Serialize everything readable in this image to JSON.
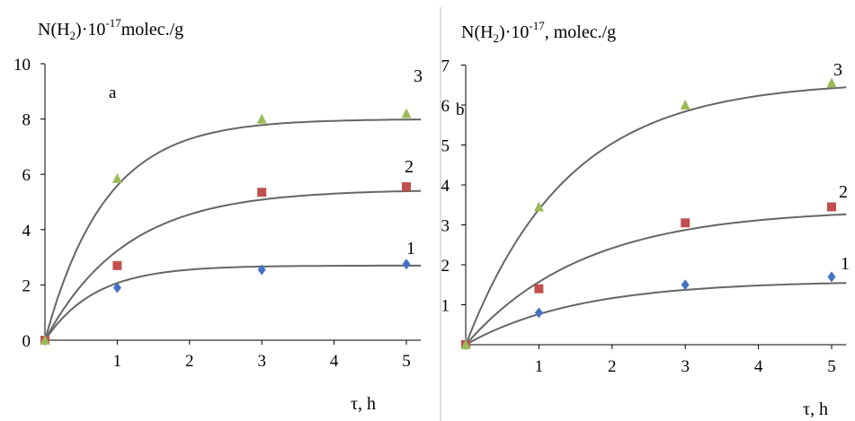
{
  "chart_data": [
    {
      "type": "scatter",
      "panel_label": "a",
      "ylabel_prefix": "N(H",
      "ylabel_sub": "2",
      "ylabel_mid": ")·10",
      "ylabel_exp": "-17",
      "ylabel_unit": "molec./g",
      "xlabel": "τ, h",
      "xlim": [
        0,
        5.2
      ],
      "ylim": [
        0,
        10
      ],
      "x_ticks": [
        1,
        2,
        3,
        4,
        5
      ],
      "y_ticks": [
        0,
        2,
        4,
        6,
        8,
        10
      ],
      "series": [
        {
          "label": "1",
          "color": "#4472c4",
          "marker": "diamond",
          "x": [
            0,
            1,
            3,
            5
          ],
          "y": [
            0,
            1.9,
            2.55,
            2.75
          ],
          "fit_plateau": 2.7,
          "fit_rate": 1.45
        },
        {
          "label": "2",
          "color": "#c0504d",
          "marker": "square",
          "x": [
            0,
            1,
            3,
            5
          ],
          "y": [
            0,
            2.7,
            5.35,
            5.55
          ],
          "fit_plateau": 5.45,
          "fit_rate": 0.9
        },
        {
          "label": "3",
          "color": "#9bbb59",
          "marker": "triangle",
          "x": [
            0,
            1,
            3,
            5
          ],
          "y": [
            0,
            5.85,
            8.0,
            8.2
          ],
          "fit_plateau": 8.0,
          "fit_rate": 1.2
        }
      ]
    },
    {
      "type": "scatter",
      "panel_label": "b",
      "ylabel_prefix": "N(H",
      "ylabel_sub": "2",
      "ylabel_mid": ")·10",
      "ylabel_exp": "-17",
      "ylabel_unit": ", molec./g",
      "xlabel": "τ, h",
      "xlim": [
        0,
        5.2
      ],
      "ylim": [
        0,
        7
      ],
      "x_ticks": [
        1,
        2,
        3,
        4,
        5
      ],
      "y_ticks": [
        1,
        2,
        3,
        4,
        5,
        6,
        7
      ],
      "series": [
        {
          "label": "1",
          "color": "#4472c4",
          "marker": "diamond",
          "x": [
            0,
            1,
            3,
            5
          ],
          "y": [
            0,
            0.8,
            1.5,
            1.7
          ],
          "fit_plateau": 1.6,
          "fit_rate": 0.65
        },
        {
          "label": "2",
          "color": "#c0504d",
          "marker": "square",
          "x": [
            0,
            1,
            3,
            5
          ],
          "y": [
            0,
            1.4,
            3.05,
            3.45
          ],
          "fit_plateau": 3.4,
          "fit_rate": 0.62
        },
        {
          "label": "3",
          "color": "#9bbb59",
          "marker": "triangle",
          "x": [
            0,
            1,
            3,
            5
          ],
          "y": [
            0,
            3.45,
            6.0,
            6.55
          ],
          "fit_plateau": 6.6,
          "fit_rate": 0.72
        }
      ]
    }
  ]
}
